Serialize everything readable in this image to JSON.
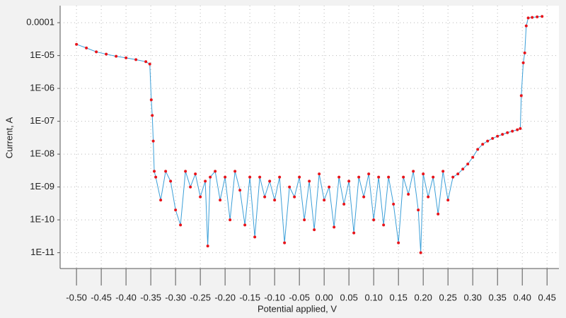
{
  "chart_data": {
    "type": "line",
    "x_label": "Potential applied, V",
    "y_label": "Current, A",
    "log_y": true,
    "grid": true,
    "xlim": [
      -0.533,
      0.474
    ],
    "ylim": [
      3.3e-12,
      0.00033
    ],
    "xticks": [
      {
        "value": -0.5,
        "label": "-0.50"
      },
      {
        "value": -0.45,
        "label": "-0.45"
      },
      {
        "value": -0.4,
        "label": "-0.40"
      },
      {
        "value": -0.35,
        "label": "-0.35"
      },
      {
        "value": -0.3,
        "label": "-0.30"
      },
      {
        "value": -0.25,
        "label": "-0.25"
      },
      {
        "value": -0.2,
        "label": "-0.20"
      },
      {
        "value": -0.15,
        "label": "-0.15"
      },
      {
        "value": -0.1,
        "label": "-0.10"
      },
      {
        "value": -0.05,
        "label": "-0.05"
      },
      {
        "value": 0,
        "label": "0.00"
      },
      {
        "value": 0.05,
        "label": "0.05"
      },
      {
        "value": 0.1,
        "label": "0.10"
      },
      {
        "value": 0.15,
        "label": "0.15"
      },
      {
        "value": 0.2,
        "label": "0.20"
      },
      {
        "value": 0.25,
        "label": "0.25"
      },
      {
        "value": 0.3,
        "label": "0.30"
      },
      {
        "value": 0.35,
        "label": "0.35"
      },
      {
        "value": 0.4,
        "label": "0.40"
      },
      {
        "value": 0.45,
        "label": "0.45"
      }
    ],
    "yticks": [
      {
        "value": 1e-11,
        "label": "1E-11"
      },
      {
        "value": 1e-10,
        "label": "1E-10"
      },
      {
        "value": 1e-09,
        "label": "1E-09"
      },
      {
        "value": 1e-08,
        "label": "1E-08"
      },
      {
        "value": 1e-07,
        "label": "1E-07"
      },
      {
        "value": 1e-06,
        "label": "1E-06"
      },
      {
        "value": 1e-05,
        "label": "1E-05"
      },
      0.0001
    ],
    "x": [
      -0.5,
      -0.48,
      -0.46,
      -0.44,
      -0.42,
      -0.4,
      -0.38,
      -0.36,
      -0.352,
      -0.349,
      -0.347,
      -0.345,
      -0.343,
      -0.34,
      -0.33,
      -0.32,
      -0.31,
      -0.3,
      -0.29,
      -0.28,
      -0.27,
      -0.26,
      -0.25,
      -0.24,
      -0.235,
      -0.23,
      -0.22,
      -0.21,
      -0.2,
      -0.19,
      -0.18,
      -0.17,
      -0.16,
      -0.15,
      -0.14,
      -0.13,
      -0.12,
      -0.11,
      -0.1,
      -0.09,
      -0.08,
      -0.07,
      -0.06,
      -0.05,
      -0.04,
      -0.03,
      -0.02,
      -0.01,
      0,
      0.01,
      0.02,
      0.03,
      0.04,
      0.05,
      0.06,
      0.07,
      0.08,
      0.09,
      0.1,
      0.11,
      0.12,
      0.13,
      0.14,
      0.15,
      0.16,
      0.17,
      0.18,
      0.19,
      0.195,
      0.2,
      0.21,
      0.22,
      0.23,
      0.24,
      0.25,
      0.26,
      0.27,
      0.28,
      0.29,
      0.3,
      0.31,
      0.32,
      0.33,
      0.34,
      0.35,
      0.36,
      0.37,
      0.38,
      0.39,
      0.396,
      0.398,
      0.402,
      0.405,
      0.408,
      0.412,
      0.42,
      0.43,
      0.44
    ],
    "series": [
      {
        "name": "Current",
        "color": "#e8141a",
        "line_color": "#3b9fd8",
        "values": [
          2.2e-05,
          1.7e-05,
          1.3e-05,
          1.1e-05,
          9.5e-06,
          8.5e-06,
          7.5e-06,
          6.5e-06,
          5.5e-06,
          4.5e-07,
          1.5e-07,
          2.5e-08,
          3e-09,
          2e-09,
          4e-10,
          3e-09,
          1.5e-09,
          2e-10,
          7e-11,
          3e-09,
          1e-09,
          2.5e-09,
          5e-10,
          1.5e-09,
          1.6e-11,
          2e-09,
          3e-09,
          4e-10,
          2e-09,
          1e-10,
          3e-09,
          8e-10,
          7e-11,
          2e-09,
          3e-11,
          2e-09,
          5e-10,
          1.5e-09,
          4e-10,
          2e-09,
          2e-11,
          1e-09,
          5e-10,
          2e-09,
          1e-10,
          1.5e-09,
          5e-11,
          2.5e-09,
          4e-10,
          1e-09,
          6e-11,
          2e-09,
          3e-10,
          1.5e-09,
          4e-11,
          2e-09,
          5e-10,
          2.5e-09,
          1e-10,
          2e-09,
          7e-11,
          2e-09,
          3e-10,
          2e-11,
          2e-09,
          6e-10,
          3e-09,
          2e-10,
          1e-11,
          2.5e-09,
          5e-10,
          2e-09,
          1.5e-10,
          3e-09,
          4e-10,
          2e-09,
          2.5e-09,
          3.5e-09,
          5e-09,
          8e-09,
          1.4e-08,
          2e-08,
          2.5e-08,
          3e-08,
          3.5e-08,
          4e-08,
          4.5e-08,
          5e-08,
          5.5e-08,
          6e-08,
          6e-07,
          6e-06,
          1.2e-05,
          8e-05,
          0.00014,
          0.000145,
          0.00015,
          0.000155
        ]
      }
    ]
  }
}
